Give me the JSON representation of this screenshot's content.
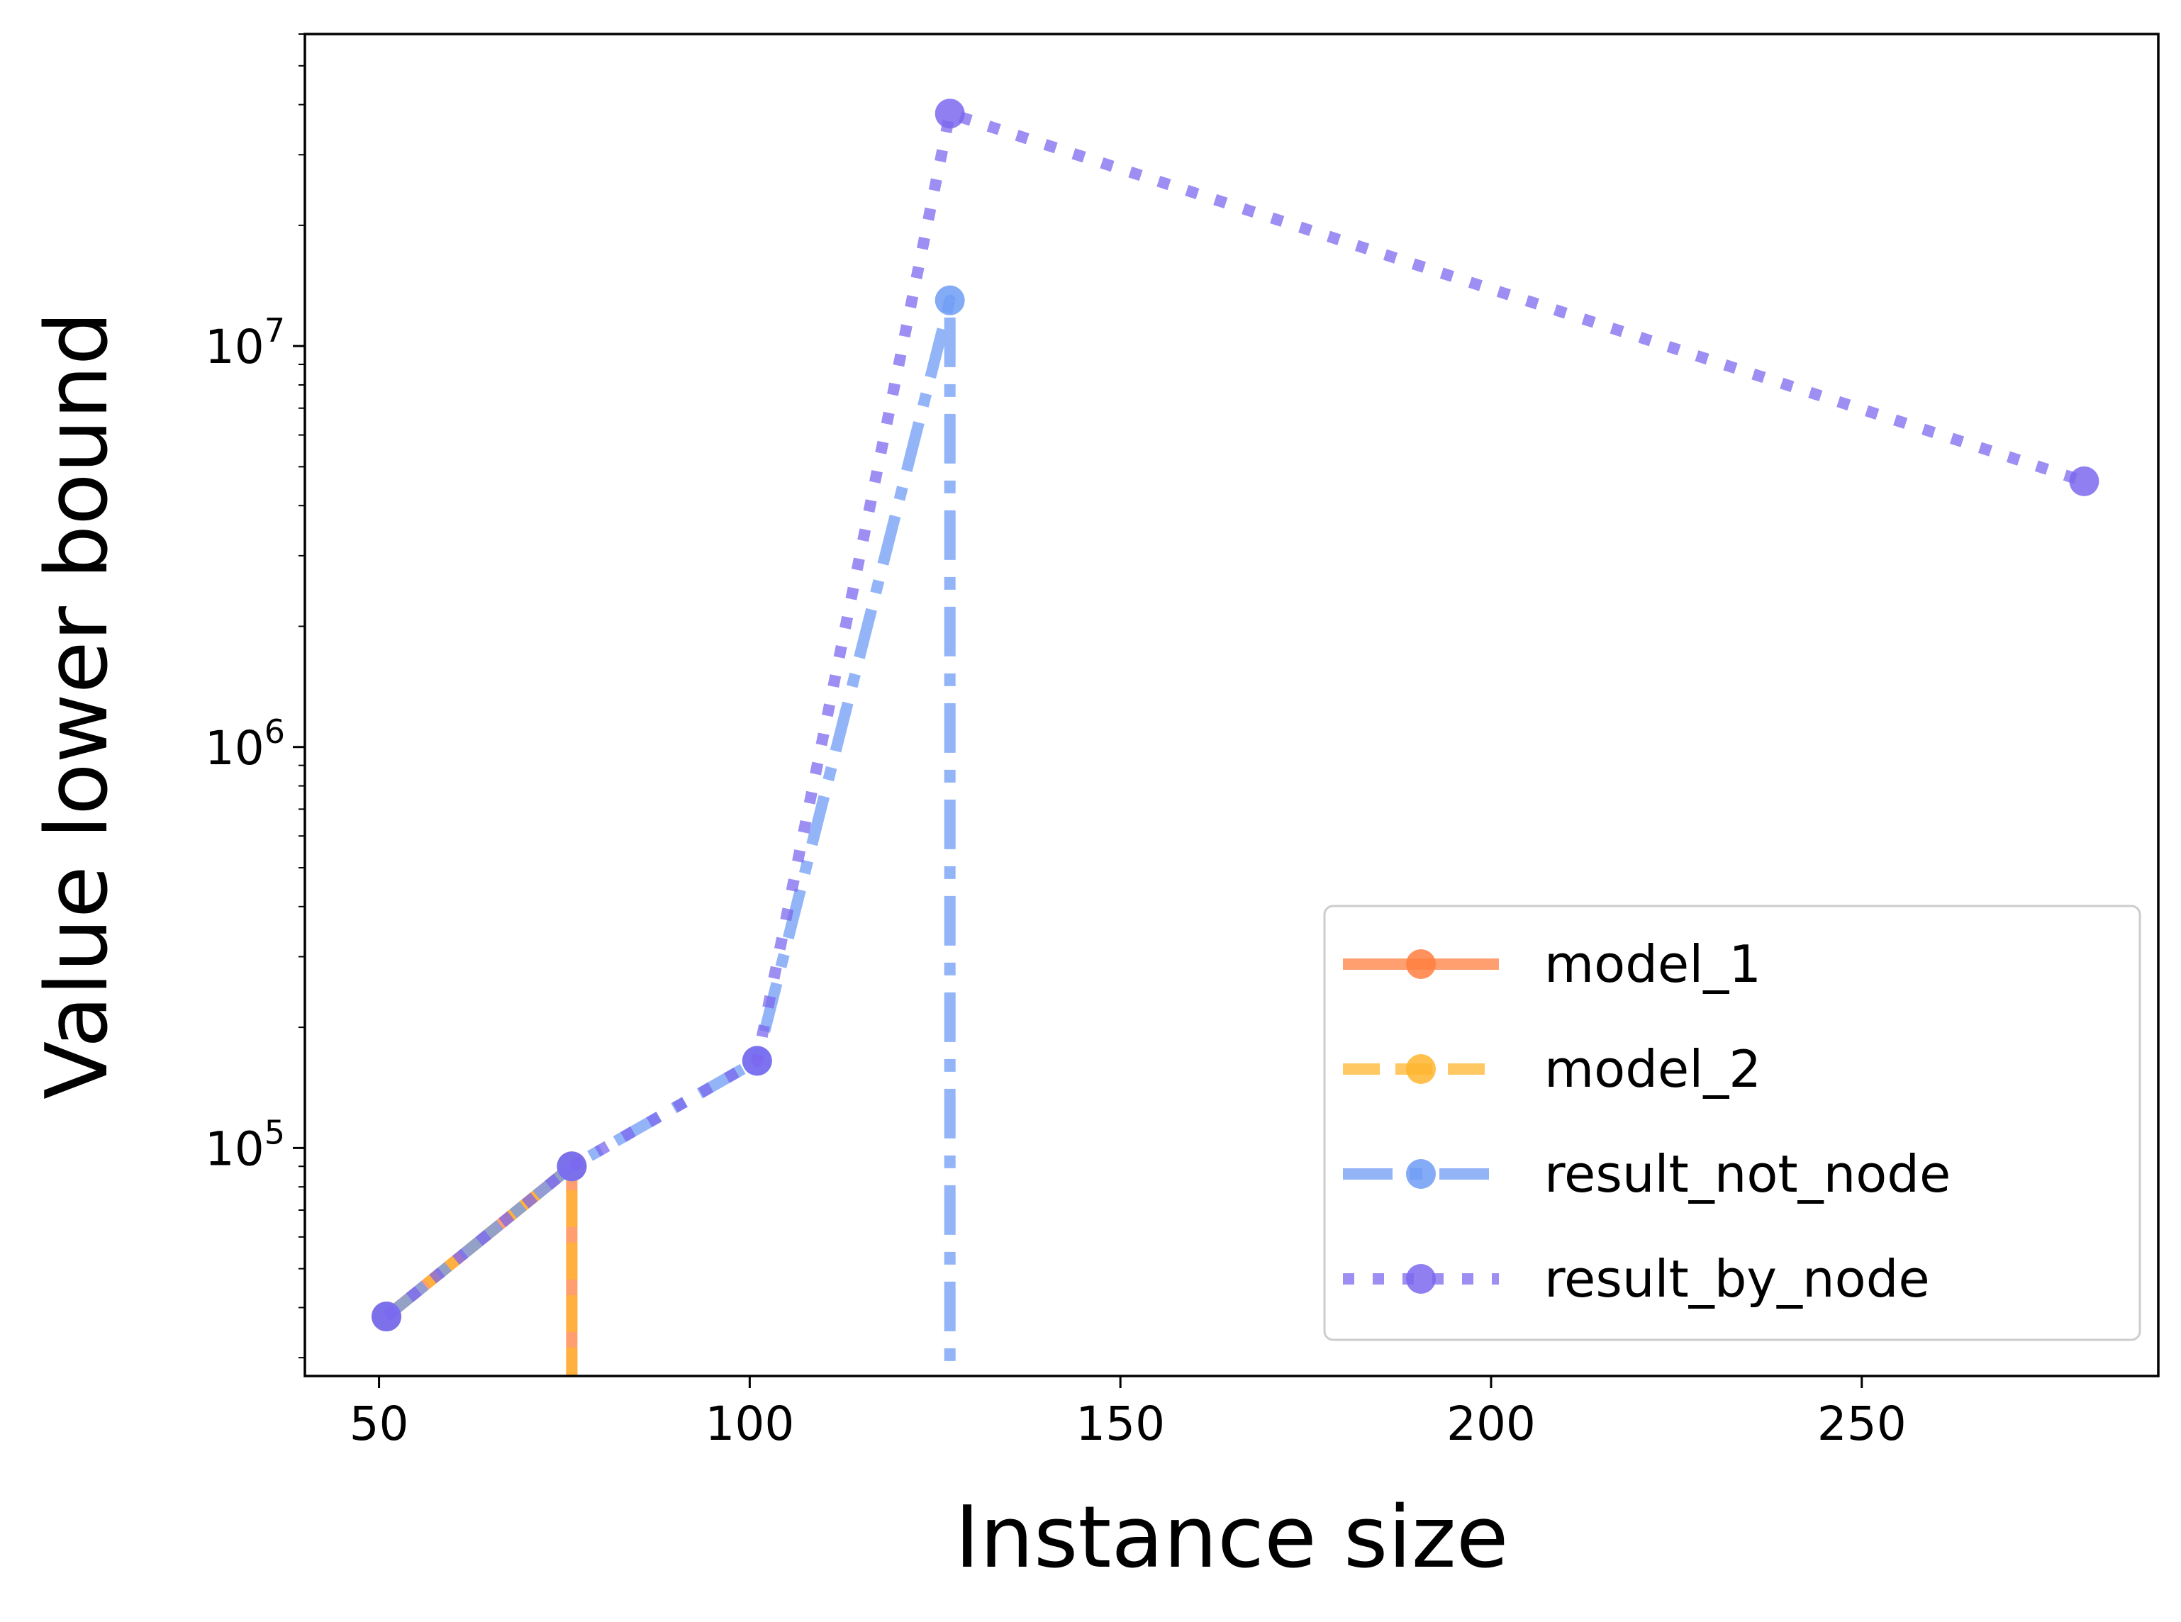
{
  "chart_data": {
    "type": "line",
    "title": "",
    "xlabel": "Instance size",
    "ylabel": "Value lower bound",
    "xscale": "linear",
    "yscale": "log",
    "xlim": [
      40,
      290
    ],
    "ylim": [
      27000,
      60000000
    ],
    "xticks": [
      50,
      100,
      150,
      200,
      250
    ],
    "xtick_labels": [
      "50",
      "100",
      "150",
      "200",
      "250"
    ],
    "yticks": [
      100000,
      1000000,
      10000000
    ],
    "ytick_labels": [
      {
        "base": "10",
        "exp": "5"
      },
      {
        "base": "10",
        "exp": "6"
      },
      {
        "base": "10",
        "exp": "7"
      }
    ],
    "grid": false,
    "legend": {
      "position": "lower right",
      "show": true
    },
    "series": [
      {
        "name": "model_1",
        "color": "#ff7f3f",
        "linestyle": "solid",
        "marker": "circle",
        "x": [
          51,
          76
        ],
        "y": [
          38000,
          90000
        ],
        "drop_to_bottom_at": 76
      },
      {
        "name": "model_2",
        "color": "#ffb52e",
        "linestyle": "dashed",
        "marker": "circle",
        "x": [
          51,
          76
        ],
        "y": [
          38000,
          90000
        ],
        "drop_to_bottom_at": 76
      },
      {
        "name": "result_not_node",
        "color": "#6f9cf5",
        "linestyle": "dashdot",
        "marker": "circle",
        "x": [
          51,
          76,
          101,
          127
        ],
        "y": [
          38000,
          90000,
          165000,
          13000000
        ],
        "drop_to_bottom_at": 127
      },
      {
        "name": "result_by_node",
        "color": "#7b68ee",
        "linestyle": "dotted",
        "marker": "circle",
        "x": [
          51,
          76,
          101,
          127,
          280
        ],
        "y": [
          38000,
          90000,
          165000,
          38000000,
          4600000
        ],
        "drop_to_bottom_at": null
      }
    ]
  }
}
